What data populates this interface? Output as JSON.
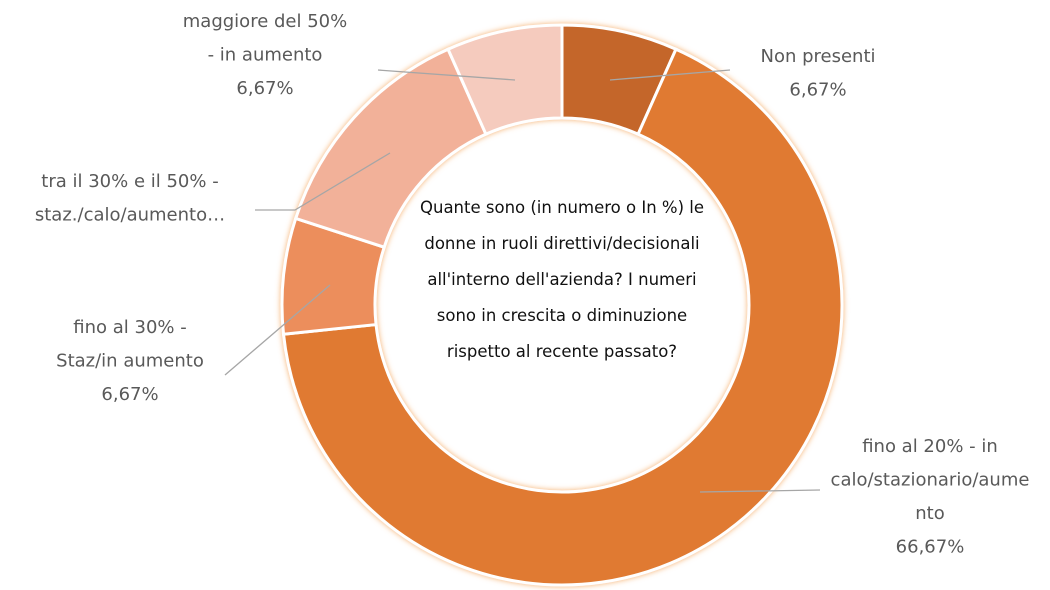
{
  "chart_data": {
    "type": "donut",
    "title": "Quante sono (in numero o In %) le donne in ruoli direttivi/decisionali all'interno dell'azienda? I numeri sono in crescita o diminuzione rispetto al recente passato?",
    "categories": [
      "Non presenti",
      "fino al 20% - in calo/stazionario/aumento",
      "fino al 30% - Staz/in aumento",
      "tra il 30% e il 50% - staz./calo/aumento…",
      "maggiore del 50% - in aumento"
    ],
    "values": [
      6.67,
      66.67,
      6.67,
      13.33,
      6.67
    ],
    "value_labels": [
      "6,67%",
      "66,67%",
      "6,67%",
      null,
      "6,67%"
    ],
    "colors": [
      "#c4662b",
      "#e07a30",
      "#ec8e5c",
      "#f2b199",
      "#f5cbbe"
    ]
  }
}
